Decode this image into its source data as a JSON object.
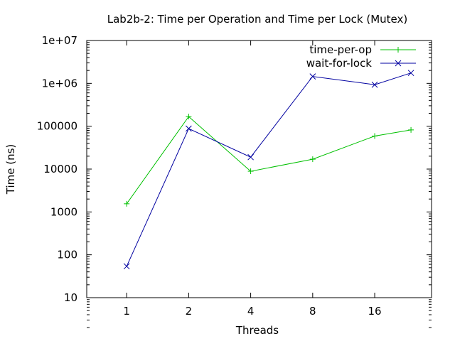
{
  "chart_data": {
    "type": "line",
    "title": "Lab2b-2: Time per Operation and Time per Lock (Mutex)",
    "xlabel": "Threads",
    "ylabel": "Time (ns)",
    "y_scale": "log",
    "ylim": [
      10,
      10000000
    ],
    "y_ticks": [
      10,
      100,
      1000,
      10000,
      100000,
      1000000,
      10000000
    ],
    "y_tick_labels": [
      "10",
      "100",
      "1000",
      "10000",
      "100000",
      "1e+06",
      "1e+07"
    ],
    "x_scale": "log2",
    "xlim": [
      0.64,
      30.2
    ],
    "x_ticks": [
      1,
      2,
      4,
      8,
      16
    ],
    "x_tick_labels": [
      "1",
      "2",
      "4",
      "8",
      "16"
    ],
    "grid": false,
    "legend_position": "top-right",
    "series": [
      {
        "name": "time-per-op",
        "color": "#00c000",
        "marker": "plus",
        "x": [
          1,
          2,
          4,
          8,
          16,
          24
        ],
        "y": [
          1550,
          168000,
          8900,
          17000,
          59000,
          82000
        ]
      },
      {
        "name": "wait-for-lock",
        "color": "#0000a0",
        "marker": "cross",
        "x": [
          1,
          2,
          4,
          8,
          16,
          24
        ],
        "y": [
          54,
          88000,
          19000,
          1450000,
          930000,
          1750000
        ]
      }
    ]
  }
}
